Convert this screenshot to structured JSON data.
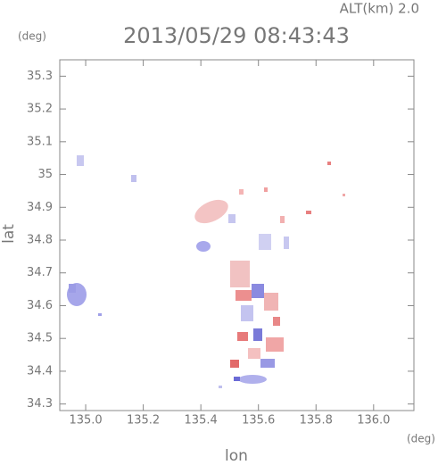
{
  "chart_data": {
    "type": "map",
    "annotation": "ALT(km) 2.0",
    "title": "2013/05/29 08:43:43",
    "ylabel_unit": "(deg)",
    "xlabel_unit": "(deg)",
    "xlabel": "lon",
    "ylabel": "lat",
    "xlim": [
      134.91,
      136.14
    ],
    "ylim": [
      34.28,
      35.35
    ],
    "xticks": [
      {
        "value": 135,
        "label": "135.0"
      },
      135.2,
      135.4,
      135.6,
      135.8,
      {
        "value": 136,
        "label": "136.0"
      }
    ],
    "yticks": [
      34.3,
      34.4,
      34.5,
      34.6,
      34.7,
      34.8,
      34.9,
      35.0,
      35.1,
      35.2,
      35.3
    ]
  }
}
